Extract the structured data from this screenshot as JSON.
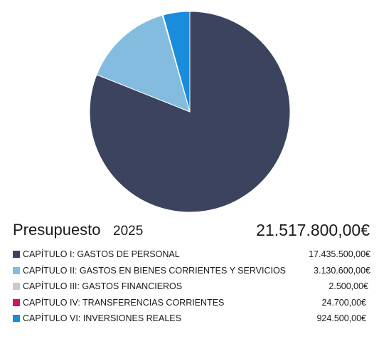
{
  "chart_data": {
    "type": "pie",
    "start_angle_deg": 0,
    "direction": "clockwise",
    "slices": [
      {
        "label": "CAPÍTULO I: GASTOS DE PERSONAL",
        "value": 17435500,
        "display": "17.435.500,00€",
        "color": "#3b435f"
      },
      {
        "label": "CAPÍTULO II: GASTOS EN BIENES CORRIENTES Y SERVICIOS",
        "value": 3130600,
        "display": "3.130.600,00€",
        "color": "#84bcdf"
      },
      {
        "label": "CAPÍTULO III: GASTOS FINANCIEROS",
        "value": 2500,
        "display": "2.500,00€",
        "color": "#c9c9c9"
      },
      {
        "label": "CAPÍTULO IV: TRANSFERENCIAS CORRIENTES",
        "value": 24700,
        "display": "24.700,00€",
        "color": "#d8125e"
      },
      {
        "label": "CAPÍTULO VI: INVERSIONES REALES",
        "value": 924500,
        "display": "924.500,00€",
        "color": "#1a8cdc"
      }
    ]
  },
  "total": {
    "title": "Presupuesto",
    "year": "2025",
    "amount": "21.517.800,00€"
  }
}
